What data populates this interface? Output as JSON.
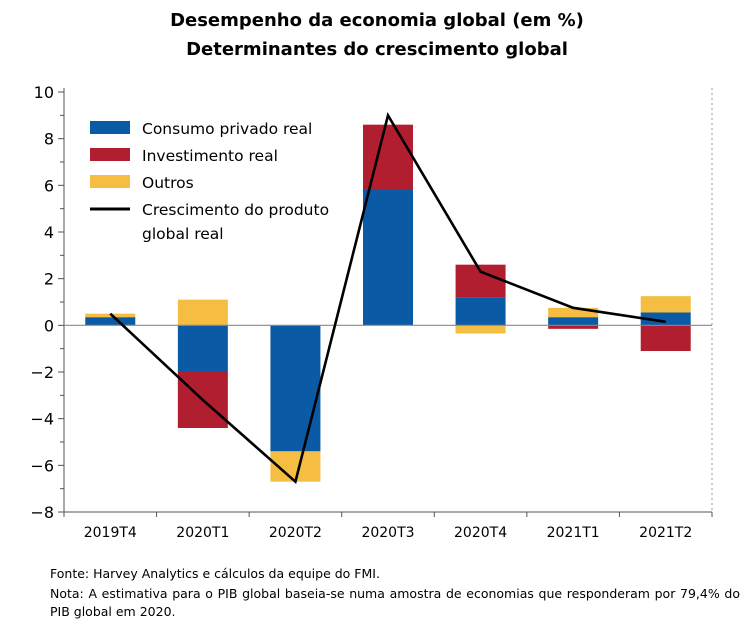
{
  "title": "Desempenho da economia global (em %)",
  "subtitle": "Determinantes do crescimento global",
  "footnotes": {
    "source": "Fonte: Harvey Analytics e cálculos da equipe do FMI.",
    "note": "Nota: A estimativa para o PIB global baseia-se numa amostra de economias que responderam por 79,4% do PIB global em 2020."
  },
  "chart_data": {
    "type": "bar",
    "stacked": true,
    "categories": [
      "2019T4",
      "2020T1",
      "2020T2",
      "2020T3",
      "2020T4",
      "2021T1",
      "2021T2"
    ],
    "series": [
      {
        "name": "Consumo privado real",
        "type": "bar",
        "color": "#0b5aa6",
        "values": [
          0.35,
          -2.0,
          -5.4,
          5.8,
          1.2,
          0.35,
          0.55
        ]
      },
      {
        "name": "Investimento real",
        "type": "bar",
        "color": "#b01e2f",
        "values": [
          0.0,
          -2.4,
          0.0,
          2.8,
          1.4,
          -0.15,
          -1.1
        ]
      },
      {
        "name": "Outros",
        "type": "bar",
        "color": "#f5bd42",
        "values": [
          0.15,
          1.1,
          -1.3,
          0.0,
          -0.35,
          0.4,
          0.7
        ]
      },
      {
        "name": "Crescimento do produto global real",
        "type": "line",
        "color": "#000000",
        "values": [
          0.5,
          -3.2,
          -6.7,
          9.0,
          2.3,
          0.75,
          0.15
        ]
      }
    ],
    "ylim": [
      -8,
      10
    ],
    "yticks": [
      -8,
      -6,
      -4,
      -2,
      0,
      2,
      4,
      6,
      8,
      10
    ],
    "legend": {
      "position": "top-left",
      "entries": [
        {
          "label": "Consumo privado real",
          "color": "#0b5aa6",
          "kind": "box"
        },
        {
          "label": "Investimento real",
          "color": "#b01e2f",
          "kind": "box"
        },
        {
          "label": "Outros",
          "color": "#f5bd42",
          "kind": "box"
        },
        {
          "label_lines": [
            "Crescimento do produto",
            "global real"
          ],
          "color": "#000000",
          "kind": "line"
        }
      ]
    }
  }
}
